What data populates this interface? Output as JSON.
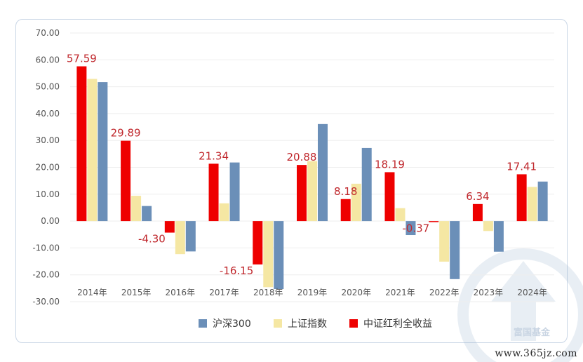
{
  "chart_data": {
    "type": "bar",
    "categories": [
      "2014年",
      "2015年",
      "2016年",
      "2017年",
      "2018年",
      "2019年",
      "2020年",
      "2021年",
      "2022年",
      "2023年",
      "2024年"
    ],
    "series": [
      {
        "name": "中证红利全收益",
        "color": "#ee0000",
        "values": [
          57.59,
          29.89,
          -4.3,
          21.34,
          -16.15,
          20.88,
          8.18,
          18.19,
          -0.37,
          6.34,
          17.41
        ],
        "labels": [
          "57.59",
          "29.89",
          "-4.30",
          "21.34",
          "-16.15",
          "20.88",
          "8.18",
          "18.19",
          "-0.37",
          "6.34",
          "17.41"
        ]
      },
      {
        "name": "上证指数",
        "color": "#f5e7a3",
        "values": [
          52.9,
          9.4,
          -12.3,
          6.6,
          -24.6,
          22.3,
          13.9,
          4.8,
          -15.1,
          -3.7,
          12.7
        ]
      },
      {
        "name": "沪深300",
        "color": "#6b8fb8",
        "values": [
          51.7,
          5.6,
          -11.3,
          21.8,
          -25.3,
          36.1,
          27.2,
          -5.2,
          -21.6,
          -11.4,
          14.7
        ]
      }
    ],
    "y_ticks": [
      "70.00",
      "60.00",
      "50.00",
      "40.00",
      "30.00",
      "20.00",
      "10.00",
      "0.00",
      "-10.00",
      "-20.00",
      "-30.00"
    ],
    "ylim": [
      -30,
      70
    ],
    "legend": [
      "沪深300",
      "上证指数",
      "中证红利全收益"
    ],
    "legend_position": "bottom",
    "grid": true
  },
  "watermark_text": "富国基金",
  "footer_url": "www.365jz.com"
}
